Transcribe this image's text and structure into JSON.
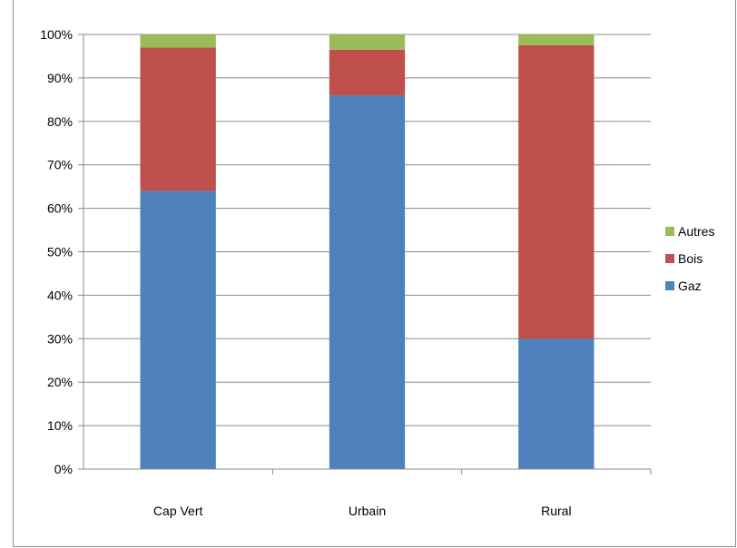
{
  "chart_data": {
    "type": "bar",
    "stacked": true,
    "categories": [
      "Cap Vert",
      "Urbain",
      "Rural"
    ],
    "series": [
      {
        "name": "Gaz",
        "color": "#4f81bd",
        "values": [
          64,
          86,
          30
        ]
      },
      {
        "name": "Bois",
        "color": "#c0504d",
        "values": [
          33,
          10.5,
          67.5
        ]
      },
      {
        "name": "Autres",
        "color": "#9bbb59",
        "values": [
          3,
          3.5,
          2.5
        ]
      }
    ],
    "yticks": [
      "0%",
      "10%",
      "20%",
      "30%",
      "40%",
      "50%",
      "60%",
      "70%",
      "80%",
      "90%",
      "100%"
    ],
    "ylim": [
      0,
      100
    ],
    "grid": true,
    "legend_position": "right",
    "legend_order": [
      "Autres",
      "Bois",
      "Gaz"
    ],
    "title": "",
    "xlabel": "",
    "ylabel": ""
  }
}
